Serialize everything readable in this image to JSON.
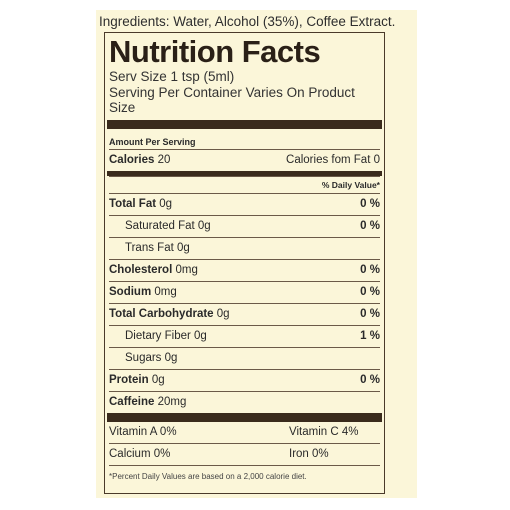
{
  "ingredients": "Ingredients: Water, Alcohol (35%), Coffee Extract.",
  "title": "Nutrition Facts",
  "serving_size": "Serv Size 1 tsp (5ml)",
  "servings_per_container": "Serving Per Container Varies On Product Size",
  "amount_per_serving": "Amount Per Serving",
  "calories": {
    "label": "Calories",
    "value": "20",
    "from_fat_label": "Calories fom Fat",
    "from_fat_value": "0"
  },
  "daily_value_header": "% Daily Value*",
  "nutrients": [
    {
      "name": "Total Fat",
      "amount": "0g",
      "dv": "0 %",
      "bold": true,
      "indent": false
    },
    {
      "name": "Saturated Fat",
      "amount": "0g",
      "dv": "0 %",
      "bold": false,
      "indent": true
    },
    {
      "name": "Trans Fat",
      "amount": "0g",
      "dv": "",
      "bold": false,
      "indent": true
    },
    {
      "name": "Cholesterol",
      "amount": "0mg",
      "dv": "0 %",
      "bold": true,
      "indent": false
    },
    {
      "name": "Sodium",
      "amount": "0mg",
      "dv": "0 %",
      "bold": true,
      "indent": false
    },
    {
      "name": "Total Carbohydrate",
      "amount": "0g",
      "dv": "0 %",
      "bold": true,
      "indent": false
    },
    {
      "name": "Dietary Fiber",
      "amount": "0g",
      "dv": "1 %",
      "bold": false,
      "indent": true
    },
    {
      "name": "Sugars",
      "amount": "0g",
      "dv": "",
      "bold": false,
      "indent": true
    },
    {
      "name": "Protein",
      "amount": "0g",
      "dv": "0 %",
      "bold": true,
      "indent": false
    },
    {
      "name": "Caffeine",
      "amount": "20mg",
      "dv": "",
      "bold": true,
      "indent": false
    }
  ],
  "vitamins": [
    {
      "left": "Vitamin A 0%",
      "right": "Vitamin C 4%"
    },
    {
      "left": "Calcium 0%",
      "right": "Iron 0%"
    }
  ],
  "footnote": "*Percent Daily Values are based on a 2,000 calorie diet.",
  "colors": {
    "background": "#fbf6d9",
    "rule": "#3a2b1c",
    "text": "#2a2a2a"
  }
}
